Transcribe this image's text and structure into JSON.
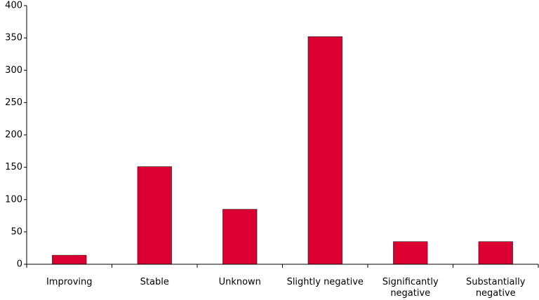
{
  "chart_data": {
    "type": "bar",
    "categories": [
      "Improving",
      "Stable",
      "Unknown",
      "Slightly negative",
      "Significantly negative",
      "Substantially negative"
    ],
    "values": [
      14,
      151,
      85,
      352,
      35,
      35
    ],
    "color": "#dc0032",
    "ylim": [
      0,
      400
    ],
    "yticks": [
      0,
      50,
      100,
      150,
      200,
      250,
      300,
      350,
      400
    ],
    "grid": false
  }
}
